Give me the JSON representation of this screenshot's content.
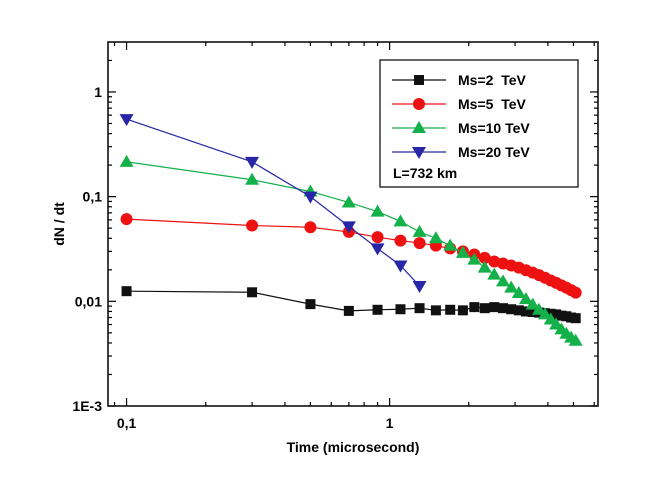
{
  "chart_data": {
    "type": "line",
    "xscale": "log",
    "yscale": "log",
    "xlabel": "Time (microsecond)",
    "ylabel": "dN / dt",
    "xlim": [
      0.085,
      6.2
    ],
    "ylim": [
      0.001,
      3.0
    ],
    "x_ticks": [
      {
        "value": 0.1,
        "label": "0,1"
      },
      {
        "value": 1,
        "label": "1"
      }
    ],
    "y_ticks": [
      {
        "value": 0.001,
        "label": "1E-3"
      },
      {
        "value": 0.01,
        "label": "0,01"
      },
      {
        "value": 0.1,
        "label": "0,1"
      },
      {
        "value": 1,
        "label": "1"
      }
    ],
    "annotation": "L=732 km",
    "legend_position": "top-right",
    "series": [
      {
        "name": "Ms=2  TeV",
        "color": "#111111",
        "marker": "square",
        "x": [
          0.1,
          0.3,
          0.5,
          0.7,
          0.9,
          1.1,
          1.3,
          1.5,
          1.7,
          1.9,
          2.1,
          2.3,
          2.5,
          2.7,
          2.9,
          3.1,
          3.3,
          3.5,
          3.7,
          3.9,
          4.1,
          4.3,
          4.5,
          4.7,
          4.9,
          5.1
        ],
        "y": [
          0.0125,
          0.0122,
          0.0094,
          0.0081,
          0.0083,
          0.0084,
          0.0086,
          0.0082,
          0.0083,
          0.0082,
          0.0088,
          0.0086,
          0.0088,
          0.0086,
          0.0084,
          0.0082,
          0.008,
          0.0079,
          0.0078,
          0.0077,
          0.0076,
          0.0075,
          0.0073,
          0.0072,
          0.007,
          0.0069
        ]
      },
      {
        "name": "Ms=5  TeV",
        "color": "#ee1111",
        "marker": "circle",
        "x": [
          0.1,
          0.3,
          0.5,
          0.7,
          0.9,
          1.1,
          1.3,
          1.5,
          1.7,
          1.9,
          2.1,
          2.3,
          2.5,
          2.7,
          2.9,
          3.1,
          3.3,
          3.5,
          3.7,
          3.9,
          4.1,
          4.3,
          4.5,
          4.7,
          4.9,
          5.1
        ],
        "y": [
          0.061,
          0.053,
          0.051,
          0.046,
          0.041,
          0.038,
          0.036,
          0.034,
          0.032,
          0.03,
          0.028,
          0.026,
          0.024,
          0.023,
          0.022,
          0.021,
          0.0198,
          0.0188,
          0.0178,
          0.0168,
          0.0158,
          0.015,
          0.0142,
          0.0135,
          0.0128,
          0.0121
        ]
      },
      {
        "name": "Ms=10 TeV",
        "color": "#14b04a",
        "marker": "triangle-up",
        "x": [
          0.1,
          0.3,
          0.5,
          0.7,
          0.9,
          1.1,
          1.3,
          1.5,
          1.7,
          1.9,
          2.1,
          2.3,
          2.5,
          2.7,
          2.9,
          3.1,
          3.3,
          3.5,
          3.7,
          3.9,
          4.1,
          4.3,
          4.5,
          4.7,
          4.9,
          5.1
        ],
        "y": [
          0.215,
          0.145,
          0.112,
          0.088,
          0.072,
          0.058,
          0.046,
          0.04,
          0.034,
          0.029,
          0.025,
          0.021,
          0.018,
          0.0155,
          0.0135,
          0.012,
          0.0105,
          0.0093,
          0.0083,
          0.0075,
          0.0067,
          0.006,
          0.0054,
          0.0049,
          0.0045,
          0.0042
        ]
      },
      {
        "name": "Ms=20 TeV",
        "color": "#2626a6",
        "marker": "triangle-down",
        "x": [
          0.1,
          0.3,
          0.5,
          0.7,
          0.9,
          1.1,
          1.3
        ],
        "y": [
          0.55,
          0.215,
          0.1,
          0.052,
          0.032,
          0.022,
          0.014
        ]
      }
    ]
  }
}
